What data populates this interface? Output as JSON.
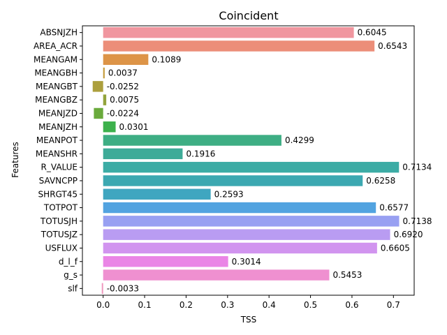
{
  "chart_data": {
    "type": "bar",
    "orientation": "horizontal",
    "title": "Coincident",
    "xlabel": "TSS",
    "ylabel": "Features",
    "xlim": [
      -0.05,
      0.75
    ],
    "xticks": [
      "0.0",
      "0.1",
      "0.2",
      "0.3",
      "0.4",
      "0.5",
      "0.6",
      "0.7"
    ],
    "grid": false,
    "legend": "none",
    "categories": [
      "ABSNJZH",
      "AREA_ACR",
      "MEANGAM",
      "MEANGBH",
      "MEANGBT",
      "MEANGBZ",
      "MEANJZD",
      "MEANJZH",
      "MEANPOT",
      "MEANSHR",
      "R_VALUE",
      "SAVNCPP",
      "SHRGT45",
      "TOTPOT",
      "TOTUSJH",
      "TOTUSJZ",
      "USFLUX",
      "d_l_f",
      "g_s",
      "slf"
    ],
    "values": [
      0.6045,
      0.6543,
      0.1089,
      0.0037,
      -0.0252,
      0.0075,
      -0.0224,
      0.0301,
      0.4299,
      0.1916,
      0.7134,
      0.6258,
      0.2593,
      0.6577,
      0.7138,
      0.692,
      0.6605,
      0.3014,
      0.5453,
      -0.0033
    ],
    "value_labels": [
      "0.6045",
      "0.6543",
      "0.1089",
      "0.0037",
      "-0.0252",
      "0.0075",
      "-0.0224",
      "0.0301",
      "0.4299",
      "0.1916",
      "0.7134",
      "0.6258",
      "0.2593",
      "0.6577",
      "0.7138",
      "0.6920",
      "0.6605",
      "0.3014",
      "0.5453",
      "-0.0033"
    ],
    "colors": [
      "#f0969f",
      "#ec8e79",
      "#dd9447",
      "#c59c3d",
      "#ac9f3d",
      "#93a43c",
      "#6aaa3c",
      "#3db14c",
      "#3eae84",
      "#3eab98",
      "#3caca5",
      "#3ca8b1",
      "#3fa6c0",
      "#52a3e0",
      "#98a0f2",
      "#b99cf2",
      "#d194ef",
      "#ea85e6",
      "#ef90d0",
      "#ef97bd"
    ]
  }
}
